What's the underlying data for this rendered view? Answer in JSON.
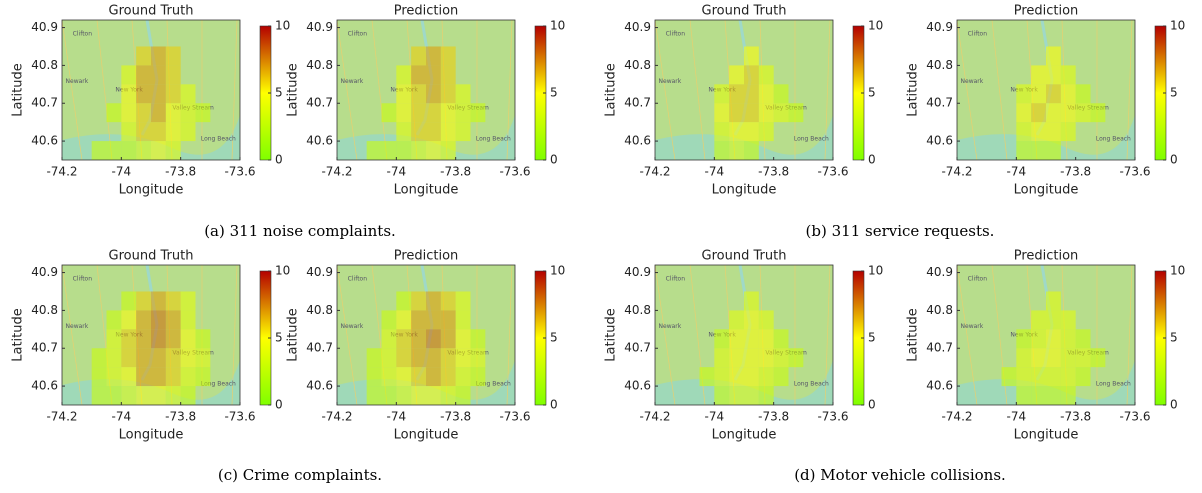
{
  "captions": [
    "(a) 311 noise complaints.",
    "(b) 311 service requests.",
    "(c) Crime complaints.",
    "(d) Motor vehicle collisions."
  ],
  "map_labels": [
    "Clifton",
    "New York",
    "Newark",
    "Valley Stream",
    "Long Beach"
  ],
  "chart_data": [
    {
      "type": "heatmap",
      "title": "Ground Truth",
      "xlabel": "Longitude",
      "ylabel": "Latitude",
      "xlim": [
        -74.2,
        -73.6
      ],
      "ylim": [
        40.55,
        40.92
      ],
      "xticks": [
        -74.2,
        -74,
        -73.8,
        -73.6
      ],
      "yticks": [
        40.6,
        40.7,
        40.8,
        40.9
      ],
      "x_edges": [
        -74.1,
        -74.05,
        -74,
        -73.95,
        -73.9,
        -73.85,
        -73.8,
        -73.75,
        -73.7
      ],
      "y_edges": [
        40.85,
        40.8,
        40.75,
        40.7,
        40.65,
        40.6,
        40.55
      ],
      "clim": [
        0,
        10
      ],
      "cticks": [
        0,
        5,
        10
      ],
      "values": [
        [
          null,
          null,
          null,
          6,
          7,
          6,
          null,
          null
        ],
        [
          null,
          null,
          4,
          7,
          7,
          6,
          null,
          null
        ],
        [
          null,
          null,
          5,
          7,
          7,
          6,
          4,
          null
        ],
        [
          null,
          3,
          5,
          6,
          7,
          5,
          4,
          3
        ],
        [
          null,
          null,
          4,
          6,
          6,
          5,
          4,
          null
        ],
        [
          3,
          3,
          3,
          4,
          5,
          4,
          null,
          null
        ]
      ]
    },
    {
      "type": "heatmap",
      "title": "Prediction",
      "xlabel": "Longitude",
      "ylabel": "Latitude",
      "xlim": [
        -74.2,
        -73.6
      ],
      "ylim": [
        40.55,
        40.92
      ],
      "xticks": [
        -74.2,
        -74,
        -73.8,
        -73.6
      ],
      "yticks": [
        40.6,
        40.7,
        40.8,
        40.9
      ],
      "x_edges": [
        -74.1,
        -74.05,
        -74,
        -73.95,
        -73.9,
        -73.85,
        -73.8,
        -73.75,
        -73.7
      ],
      "y_edges": [
        40.85,
        40.8,
        40.75,
        40.7,
        40.65,
        40.6,
        40.55
      ],
      "clim": [
        0,
        10
      ],
      "cticks": [
        0,
        5,
        10
      ],
      "values": [
        [
          null,
          null,
          null,
          6,
          7,
          6,
          null,
          null
        ],
        [
          null,
          null,
          4,
          7,
          7,
          6,
          null,
          null
        ],
        [
          null,
          null,
          5,
          6,
          7,
          6,
          4,
          null
        ],
        [
          null,
          3,
          5,
          6,
          6,
          5,
          4,
          3
        ],
        [
          null,
          null,
          4,
          6,
          6,
          5,
          4,
          null
        ],
        [
          3,
          3,
          3,
          4,
          5,
          4,
          null,
          null
        ]
      ]
    },
    {
      "type": "heatmap",
      "title": "Ground Truth",
      "xlabel": "Longitude",
      "ylabel": "Latitude",
      "xlim": [
        -74.2,
        -73.6
      ],
      "ylim": [
        40.55,
        40.92
      ],
      "xticks": [
        -74.2,
        -74,
        -73.8,
        -73.6
      ],
      "yticks": [
        40.6,
        40.7,
        40.8,
        40.9
      ],
      "x_edges": [
        -74.1,
        -74.05,
        -74,
        -73.95,
        -73.9,
        -73.85,
        -73.8,
        -73.75,
        -73.7
      ],
      "y_edges": [
        40.85,
        40.8,
        40.75,
        40.7,
        40.65,
        40.6,
        40.55
      ],
      "clim": [
        0,
        10
      ],
      "cticks": [
        0,
        5,
        10
      ],
      "values": [
        [
          null,
          null,
          null,
          null,
          5,
          null,
          null,
          null
        ],
        [
          null,
          null,
          null,
          5,
          6,
          4,
          null,
          null
        ],
        [
          null,
          null,
          4,
          6,
          6,
          5,
          3,
          null
        ],
        [
          null,
          null,
          5,
          6,
          6,
          5,
          4,
          3
        ],
        [
          null,
          null,
          4,
          5,
          5,
          4,
          null,
          null
        ],
        [
          null,
          null,
          3,
          4,
          3,
          null,
          null,
          null
        ]
      ]
    },
    {
      "type": "heatmap",
      "title": "Prediction",
      "xlabel": "Longitude",
      "ylabel": "Latitude",
      "xlim": [
        -74.2,
        -73.6
      ],
      "ylim": [
        40.55,
        40.92
      ],
      "xticks": [
        -74.2,
        -74,
        -73.8,
        -73.6
      ],
      "yticks": [
        40.6,
        40.7,
        40.8,
        40.9
      ],
      "x_edges": [
        -74.1,
        -74.05,
        -74,
        -73.95,
        -73.9,
        -73.85,
        -73.8,
        -73.75,
        -73.7
      ],
      "y_edges": [
        40.85,
        40.8,
        40.75,
        40.7,
        40.65,
        40.6,
        40.55
      ],
      "clim": [
        0,
        10
      ],
      "cticks": [
        0,
        5,
        10
      ],
      "values": [
        [
          null,
          null,
          null,
          null,
          5,
          null,
          null,
          null
        ],
        [
          null,
          null,
          null,
          5,
          5,
          4,
          null,
          null
        ],
        [
          null,
          null,
          4,
          5,
          6,
          5,
          3,
          null
        ],
        [
          null,
          null,
          5,
          6,
          5,
          5,
          4,
          3
        ],
        [
          null,
          null,
          4,
          5,
          5,
          4,
          null,
          null
        ],
        [
          null,
          null,
          3,
          3,
          3,
          null,
          null,
          null
        ]
      ]
    },
    {
      "type": "heatmap",
      "title": "Ground Truth",
      "xlabel": "Longitude",
      "ylabel": "Latitude",
      "xlim": [
        -74.2,
        -73.6
      ],
      "ylim": [
        40.55,
        40.92
      ],
      "xticks": [
        -74.2,
        -74,
        -73.8,
        -73.6
      ],
      "yticks": [
        40.6,
        40.7,
        40.8,
        40.9
      ],
      "x_edges": [
        -74.1,
        -74.05,
        -74,
        -73.95,
        -73.9,
        -73.85,
        -73.8,
        -73.75,
        -73.7
      ],
      "y_edges": [
        40.85,
        40.8,
        40.75,
        40.7,
        40.65,
        40.6,
        40.55
      ],
      "clim": [
        0,
        10
      ],
      "cticks": [
        0,
        5,
        10
      ],
      "values": [
        [
          null,
          null,
          3,
          6,
          7,
          6,
          4,
          null
        ],
        [
          null,
          3,
          5,
          7,
          8,
          7,
          4,
          null
        ],
        [
          null,
          4,
          6,
          7,
          8,
          7,
          5,
          3
        ],
        [
          3,
          4,
          6,
          7,
          7,
          6,
          5,
          4
        ],
        [
          3,
          4,
          5,
          7,
          7,
          6,
          4,
          3
        ],
        [
          3,
          3,
          4,
          5,
          5,
          4,
          3,
          null
        ]
      ]
    },
    {
      "type": "heatmap",
      "title": "Prediction",
      "xlabel": "Longitude",
      "ylabel": "Latitude",
      "xlim": [
        -74.2,
        -73.6
      ],
      "ylim": [
        40.55,
        40.92
      ],
      "xticks": [
        -74.2,
        -74,
        -73.8,
        -73.6
      ],
      "yticks": [
        40.6,
        40.7,
        40.8,
        40.9
      ],
      "x_edges": [
        -74.1,
        -74.05,
        -74,
        -73.95,
        -73.9,
        -73.85,
        -73.8,
        -73.75,
        -73.7
      ],
      "y_edges": [
        40.85,
        40.8,
        40.75,
        40.7,
        40.65,
        40.6,
        40.55
      ],
      "clim": [
        0,
        10
      ],
      "cticks": [
        0,
        5,
        10
      ],
      "values": [
        [
          null,
          null,
          3,
          6,
          7,
          6,
          4,
          null
        ],
        [
          null,
          3,
          5,
          7,
          7,
          7,
          4,
          null
        ],
        [
          null,
          4,
          6,
          7,
          8,
          7,
          5,
          3
        ],
        [
          3,
          4,
          6,
          7,
          7,
          6,
          5,
          4
        ],
        [
          3,
          4,
          5,
          6,
          7,
          6,
          4,
          3
        ],
        [
          3,
          3,
          4,
          5,
          5,
          4,
          3,
          null
        ]
      ]
    },
    {
      "type": "heatmap",
      "title": "Ground Truth",
      "xlabel": "Longitude",
      "ylabel": "Latitude",
      "xlim": [
        -74.2,
        -73.6
      ],
      "ylim": [
        40.55,
        40.92
      ],
      "xticks": [
        -74.2,
        -74,
        -73.8,
        -73.6
      ],
      "yticks": [
        40.6,
        40.7,
        40.8,
        40.9
      ],
      "x_edges": [
        -74.1,
        -74.05,
        -74,
        -73.95,
        -73.9,
        -73.85,
        -73.8,
        -73.75,
        -73.7
      ],
      "y_edges": [
        40.85,
        40.8,
        40.75,
        40.7,
        40.65,
        40.6,
        40.55
      ],
      "clim": [
        0,
        10
      ],
      "cticks": [
        0,
        5,
        10
      ],
      "values": [
        [
          null,
          null,
          null,
          null,
          4,
          null,
          null,
          null
        ],
        [
          null,
          null,
          null,
          4,
          5,
          4,
          null,
          null
        ],
        [
          null,
          null,
          3,
          5,
          5,
          5,
          3,
          null
        ],
        [
          null,
          null,
          4,
          5,
          5,
          5,
          4,
          3
        ],
        [
          null,
          3,
          4,
          5,
          5,
          4,
          3,
          null
        ],
        [
          null,
          null,
          3,
          4,
          4,
          3,
          null,
          null
        ]
      ]
    },
    {
      "type": "heatmap",
      "title": "Prediction",
      "xlabel": "Longitude",
      "ylabel": "Latitude",
      "xlim": [
        -74.2,
        -73.6
      ],
      "ylim": [
        40.55,
        40.92
      ],
      "xticks": [
        -74.2,
        -74,
        -73.8,
        -73.6
      ],
      "yticks": [
        40.6,
        40.7,
        40.8,
        40.9
      ],
      "x_edges": [
        -74.1,
        -74.05,
        -74,
        -73.95,
        -73.9,
        -73.85,
        -73.8,
        -73.75,
        -73.7
      ],
      "y_edges": [
        40.85,
        40.8,
        40.75,
        40.7,
        40.65,
        40.6,
        40.55
      ],
      "clim": [
        0,
        10
      ],
      "cticks": [
        0,
        5,
        10
      ],
      "values": [
        [
          null,
          null,
          null,
          null,
          4,
          null,
          null,
          null
        ],
        [
          null,
          null,
          null,
          4,
          4,
          4,
          null,
          null
        ],
        [
          null,
          null,
          3,
          4,
          5,
          4,
          3,
          null
        ],
        [
          null,
          null,
          4,
          5,
          5,
          4,
          4,
          3
        ],
        [
          null,
          3,
          4,
          4,
          4,
          4,
          3,
          null
        ],
        [
          null,
          null,
          3,
          3,
          3,
          3,
          null,
          null
        ]
      ]
    }
  ]
}
